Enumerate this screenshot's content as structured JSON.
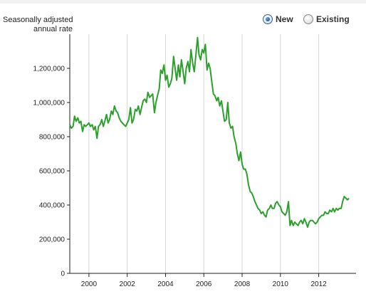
{
  "controls": {
    "options": [
      {
        "label": "New",
        "selected": true
      },
      {
        "label": "Existing",
        "selected": false
      }
    ]
  },
  "chart_data": {
    "type": "line",
    "title": "",
    "xlabel": "",
    "ylabel": "Seasonally adjusted annual rate",
    "ylabel_lines": [
      "Seasonally adjusted",
      "annual rate"
    ],
    "ylim": [
      0,
      1400000
    ],
    "xlim": [
      1999.0,
      2013.8
    ],
    "grid": "vertical",
    "y_ticks": [
      0,
      200000,
      400000,
      600000,
      800000,
      1000000,
      1200000
    ],
    "y_tick_labels": [
      "0",
      "200,000",
      "400,000",
      "600,000",
      "800,000",
      "1,000,000",
      "1,200,000"
    ],
    "x_ticks": [
      2000,
      2002,
      2004,
      2006,
      2008,
      2010,
      2012
    ],
    "x_tick_labels": [
      "2000",
      "2002",
      "2004",
      "2006",
      "2008",
      "2010",
      "2012"
    ],
    "series": [
      {
        "color": "#2ca02c",
        "x": [
          1999.0,
          1999.08,
          1999.17,
          1999.25,
          1999.33,
          1999.42,
          1999.5,
          1999.58,
          1999.67,
          1999.75,
          1999.83,
          1999.92,
          2000.0,
          2000.08,
          2000.17,
          2000.25,
          2000.33,
          2000.42,
          2000.5,
          2000.58,
          2000.67,
          2000.75,
          2000.83,
          2000.92,
          2001.0,
          2001.08,
          2001.17,
          2001.25,
          2001.33,
          2001.42,
          2001.5,
          2001.58,
          2001.67,
          2001.75,
          2001.83,
          2001.92,
          2002.0,
          2002.08,
          2002.17,
          2002.25,
          2002.33,
          2002.42,
          2002.5,
          2002.58,
          2002.67,
          2002.75,
          2002.83,
          2002.92,
          2003.0,
          2003.08,
          2003.17,
          2003.25,
          2003.33,
          2003.42,
          2003.5,
          2003.58,
          2003.67,
          2003.75,
          2003.83,
          2003.92,
          2004.0,
          2004.08,
          2004.17,
          2004.25,
          2004.33,
          2004.42,
          2004.5,
          2004.58,
          2004.67,
          2004.75,
          2004.83,
          2004.92,
          2005.0,
          2005.08,
          2005.17,
          2005.25,
          2005.33,
          2005.42,
          2005.5,
          2005.58,
          2005.67,
          2005.75,
          2005.83,
          2005.92,
          2006.0,
          2006.08,
          2006.17,
          2006.25,
          2006.33,
          2006.42,
          2006.5,
          2006.58,
          2006.67,
          2006.75,
          2006.83,
          2006.92,
          2007.0,
          2007.08,
          2007.17,
          2007.25,
          2007.33,
          2007.42,
          2007.5,
          2007.58,
          2007.67,
          2007.75,
          2007.83,
          2007.92,
          2008.0,
          2008.08,
          2008.17,
          2008.25,
          2008.33,
          2008.42,
          2008.5,
          2008.58,
          2008.67,
          2008.75,
          2008.83,
          2008.92,
          2009.0,
          2009.08,
          2009.17,
          2009.25,
          2009.33,
          2009.42,
          2009.5,
          2009.58,
          2009.67,
          2009.75,
          2009.83,
          2009.92,
          2010.0,
          2010.08,
          2010.17,
          2010.25,
          2010.33,
          2010.42,
          2010.5,
          2010.58,
          2010.67,
          2010.75,
          2010.83,
          2010.92,
          2011.0,
          2011.08,
          2011.17,
          2011.25,
          2011.33,
          2011.42,
          2011.5,
          2011.58,
          2011.67,
          2011.75,
          2011.83,
          2011.92,
          2012.0,
          2012.08,
          2012.17,
          2012.25,
          2012.33,
          2012.42,
          2012.5,
          2012.58,
          2012.67,
          2012.75,
          2012.83,
          2012.92,
          2013.0,
          2013.08,
          2013.17,
          2013.25,
          2013.33,
          2013.42,
          2013.5,
          2013.58
        ],
        "values": [
          870000,
          850000,
          860000,
          920000,
          890000,
          910000,
          880000,
          890000,
          830000,
          870000,
          860000,
          870000,
          880000,
          860000,
          870000,
          840000,
          860000,
          790000,
          860000,
          870000,
          900000,
          860000,
          890000,
          930000,
          880000,
          900000,
          950000,
          930000,
          980000,
          950000,
          940000,
          910000,
          890000,
          880000,
          870000,
          860000,
          880000,
          900000,
          970000,
          880000,
          900000,
          960000,
          950000,
          980000,
          930000,
          970000,
          1010000,
          1020000,
          1000000,
          1060000,
          1030000,
          1040000,
          1050000,
          940000,
          1000000,
          1040000,
          1080000,
          1190000,
          1170000,
          1220000,
          1130000,
          1160000,
          1090000,
          1110000,
          1140000,
          1270000,
          1200000,
          1130000,
          1220000,
          1150000,
          1250000,
          1180000,
          1110000,
          1200000,
          1240000,
          1180000,
          1310000,
          1230000,
          1180000,
          1270000,
          1380000,
          1280000,
          1250000,
          1310000,
          1290000,
          1340000,
          1190000,
          1230000,
          1200000,
          1120000,
          1050000,
          1040000,
          1010000,
          1030000,
          980000,
          1010000,
          950000,
          890000,
          900000,
          1000000,
          880000,
          850000,
          860000,
          800000,
          760000,
          700000,
          660000,
          710000,
          640000,
          610000,
          610000,
          580000,
          520000,
          480000,
          470000,
          450000,
          420000,
          400000,
          380000,
          370000,
          350000,
          360000,
          340000,
          330000,
          370000,
          380000,
          400000,
          380000,
          380000,
          410000,
          420000,
          400000,
          390000,
          360000,
          350000,
          340000,
          360000,
          420000,
          280000,
          310000,
          280000,
          300000,
          290000,
          280000,
          300000,
          310000,
          290000,
          320000,
          300000,
          270000,
          300000,
          310000,
          310000,
          300000,
          290000,
          300000,
          320000,
          330000,
          340000,
          340000,
          360000,
          350000,
          350000,
          370000,
          360000,
          380000,
          360000,
          380000,
          370000,
          380000,
          380000,
          420000,
          450000,
          440000,
          430000,
          440000
        ]
      }
    ]
  }
}
